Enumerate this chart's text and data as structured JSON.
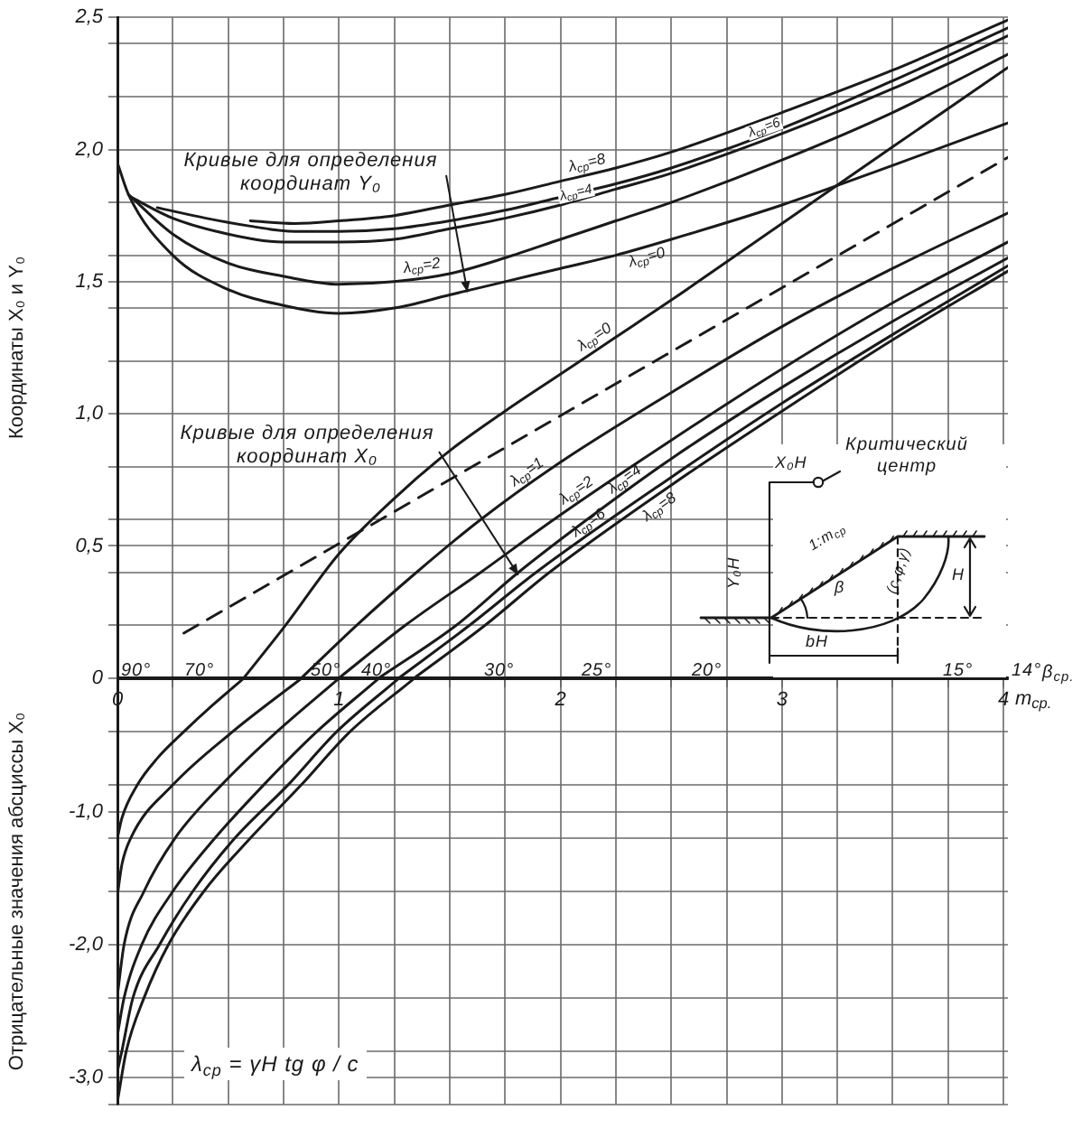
{
  "chart_data": [
    {
      "type": "line",
      "ylabel": "Координаты X₀ и Y₀",
      "tick_labels": "y",
      "grid": true,
      "marker": "none",
      "xlim": [
        0,
        4.02
      ],
      "xticks": [
        0,
        {
          "value": 0.25,
          "label": null
        },
        {
          "value": 0.5,
          "label": null
        },
        {
          "value": 0.75,
          "label": null
        },
        1,
        {
          "value": 1.25,
          "label": null
        },
        {
          "value": 1.5,
          "label": null
        },
        {
          "value": 1.75,
          "label": null
        },
        2,
        {
          "value": 2.25,
          "label": null
        },
        {
          "value": 2.5,
          "label": null
        },
        {
          "value": 2.75,
          "label": null
        },
        3,
        {
          "value": 3.25,
          "label": null
        },
        {
          "value": 3.5,
          "label": null
        },
        {
          "value": 3.75,
          "label": null
        },
        4
      ],
      "ylim": [
        0,
        2.5
      ],
      "yticks": [
        {
          "value": 0.2,
          "label": null
        },
        {
          "value": 0.4,
          "label": null
        },
        {
          "value": 0.5,
          "label": "0,5"
        },
        {
          "value": 0.6,
          "label": null
        },
        {
          "value": 0.8,
          "label": null
        },
        {
          "value": 1.0,
          "label": "1,0"
        },
        {
          "value": 1.2,
          "label": null
        },
        {
          "value": 1.4,
          "label": null
        },
        {
          "value": 1.5,
          "label": "1,5"
        },
        {
          "value": 1.6,
          "label": null
        },
        {
          "value": 1.8,
          "label": null
        },
        {
          "value": 2.0,
          "label": "2,0"
        },
        {
          "value": 2.2,
          "label": null
        },
        {
          "value": 2.4,
          "label": null
        },
        {
          "value": 2.5,
          "label": "2,5"
        }
      ],
      "series": [
        {
          "name": "λ$_{ср}$=8",
          "color": "#1a1a1a",
          "x": [
            0.6,
            0.8,
            1.0,
            1.25,
            1.5,
            1.75,
            2.0,
            2.25,
            2.5,
            3.0,
            3.5,
            4.02
          ],
          "values": [
            1.73,
            1.72,
            1.73,
            1.75,
            1.79,
            1.83,
            1.88,
            1.93,
            1.99,
            2.14,
            2.3,
            2.49
          ]
        },
        {
          "name": "λ$_{ср}$=6",
          "color": "#1a1a1a",
          "x": [
            0.18,
            0.4,
            0.6,
            0.8,
            1.0,
            1.25,
            1.5,
            1.75,
            2.0,
            2.25,
            2.5,
            3.0,
            3.5,
            4.02
          ],
          "values": [
            1.78,
            1.74,
            1.71,
            1.69,
            1.69,
            1.7,
            1.73,
            1.77,
            1.82,
            1.87,
            1.93,
            2.08,
            2.26,
            2.46
          ]
        },
        {
          "name": "λ$_{ср}$=4",
          "color": "#1a1a1a",
          "x": [
            0.06,
            0.25,
            0.5,
            0.75,
            1.0,
            1.25,
            1.5,
            1.75,
            2.0,
            2.25,
            2.5,
            3.0,
            3.5,
            4.02
          ],
          "values": [
            1.82,
            1.74,
            1.68,
            1.65,
            1.65,
            1.66,
            1.7,
            1.74,
            1.79,
            1.85,
            1.91,
            2.06,
            2.23,
            2.43
          ]
        },
        {
          "name": "λ$_{ср}$=2",
          "color": "#1a1a1a",
          "x": [
            0.05,
            0.25,
            0.5,
            0.75,
            1.0,
            1.25,
            1.5,
            1.75,
            2.0,
            2.25,
            2.5,
            3.0,
            3.5,
            4.02
          ],
          "values": [
            1.83,
            1.68,
            1.57,
            1.52,
            1.49,
            1.5,
            1.53,
            1.59,
            1.66,
            1.73,
            1.8,
            1.96,
            2.14,
            2.36
          ]
        },
        {
          "name": "λ$_{ср}$=0",
          "color": "#1a1a1a",
          "x": [
            0,
            0.05,
            0.25,
            0.5,
            0.75,
            1.0,
            1.25,
            1.5,
            1.75,
            2.0,
            2.25,
            2.5,
            3.0,
            3.5,
            4.02
          ],
          "values": [
            1.95,
            1.83,
            1.6,
            1.47,
            1.41,
            1.38,
            1.4,
            1.45,
            1.5,
            1.55,
            1.6,
            1.66,
            1.79,
            1.94,
            2.1
          ]
        },
        {
          "name": "λ$_{ср}$=0",
          "color": "#1a1a1a",
          "x": [
            0.57,
            0.75,
            1.0,
            1.25,
            1.5,
            1.75,
            2.0,
            2.25,
            2.5,
            3.0,
            3.5,
            4.02
          ],
          "values": [
            0,
            0.19,
            0.47,
            0.68,
            0.86,
            1.01,
            1.15,
            1.29,
            1.43,
            1.72,
            2.01,
            2.31
          ]
        },
        {
          "name": "λ$_{ср}$=1",
          "color": "#1a1a1a",
          "x": [
            0.83,
            1.08,
            1.35,
            1.64,
            1.97,
            2.5,
            3.0,
            3.5,
            4.02
          ],
          "values": [
            0,
            0.2,
            0.4,
            0.6,
            0.8,
            1.08,
            1.33,
            1.55,
            1.76
          ]
        },
        {
          "name": "λ$_{ср}$=2",
          "color": "#1a1a1a",
          "x": [
            1.0,
            1.3,
            1.64,
            1.97,
            2.5,
            3.0,
            3.5,
            4.02
          ],
          "values": [
            0,
            0.2,
            0.4,
            0.6,
            0.9,
            1.17,
            1.42,
            1.65
          ]
        },
        {
          "name": "λ$_{ср}$=4",
          "color": "#1a1a1a",
          "x": [
            1.18,
            1.53,
            1.81,
            2.12,
            2.5,
            3.0,
            3.5,
            4.02
          ],
          "values": [
            0,
            0.2,
            0.4,
            0.6,
            0.83,
            1.1,
            1.35,
            1.59
          ]
        },
        {
          "name": "λ$_{ср}$=6",
          "color": "#1a1a1a",
          "x": [
            1.27,
            1.59,
            1.89,
            2.5,
            3.0,
            3.5,
            4.02
          ],
          "values": [
            0,
            0.2,
            0.4,
            0.76,
            1.04,
            1.3,
            1.56
          ]
        },
        {
          "name": "λ$_{ср}$=8",
          "color": "#1a1a1a",
          "x": [
            1.34,
            1.66,
            1.95,
            2.5,
            3.0,
            3.5,
            4.02
          ],
          "values": [
            0,
            0.2,
            0.4,
            0.73,
            1.01,
            1.28,
            1.54
          ]
        },
        {
          "color": "#1a1a1a",
          "line_style": "dashed",
          "x": [
            0.3,
            4.02
          ],
          "values": [
            0.17,
            1.97
          ]
        }
      ],
      "annotations": [
        {
          "text": "Кривые для определения координат Y₀",
          "x": 1.58,
          "y": 1.46
        },
        {
          "text": "Кривые для определения координат X₀",
          "x": 1.81,
          "y": 0.39
        },
        "Критический центр",
        "X₀H",
        "Y₀H",
        "1:m$_{ср}$",
        "β",
        "(c,φ,γ)",
        "H",
        "bH",
        "β$_{ср.}$",
        "90°",
        "70°",
        "50°",
        "40°",
        "30°",
        "25°",
        "20°",
        "15°",
        "14°"
      ]
    },
    {
      "type": "line",
      "xlabel": "m$_{ср.}$",
      "ylabel": "Отрицательные значения абсциссы X₀",
      "grid": true,
      "marker": "none",
      "xlim": [
        0,
        4.02
      ],
      "xticks": [
        0,
        {
          "value": 0.25,
          "label": null
        },
        {
          "value": 0.5,
          "label": null
        },
        {
          "value": 0.75,
          "label": null
        },
        1,
        {
          "value": 1.25,
          "label": null
        },
        {
          "value": 1.5,
          "label": null
        },
        {
          "value": 1.75,
          "label": null
        },
        2,
        {
          "value": 2.25,
          "label": null
        },
        {
          "value": 2.5,
          "label": null
        },
        {
          "value": 2.75,
          "label": null
        },
        3,
        {
          "value": 3.25,
          "label": null
        },
        {
          "value": 3.5,
          "label": null
        },
        {
          "value": 3.75,
          "label": null
        },
        4
      ],
      "ylim": [
        -3.2,
        0
      ],
      "yticks": [
        0,
        {
          "value": -0.4,
          "label": null
        },
        {
          "value": -0.8,
          "label": null
        },
        {
          "value": -1.0,
          "label": "-1,0"
        },
        {
          "value": -1.2,
          "label": null
        },
        {
          "value": -1.6,
          "label": null
        },
        {
          "value": -2.0,
          "label": "-2,0"
        },
        {
          "value": -2.4,
          "label": null
        },
        {
          "value": -2.8,
          "label": null
        },
        {
          "value": -3.0,
          "label": "-3,0"
        },
        {
          "value": -3.2,
          "label": null
        }
      ],
      "series": [
        {
          "color": "#1a1a1a",
          "x": [
            0,
            0.02,
            0.09,
            0.18,
            0.3,
            0.43,
            0.57
          ],
          "values": [
            -1.2,
            -1.05,
            -0.8,
            -0.6,
            -0.4,
            -0.2,
            0
          ]
        },
        {
          "color": "#1a1a1a",
          "x": [
            0,
            0.02,
            0.06,
            0.25,
            0.52,
            0.83
          ],
          "values": [
            -1.63,
            -1.4,
            -1.2,
            -0.8,
            -0.4,
            0
          ]
        },
        {
          "color": "#1a1a1a",
          "x": [
            0,
            0.03,
            0.12,
            0.26,
            0.47,
            0.72,
            1.0
          ],
          "values": [
            -2.38,
            -2.0,
            -1.6,
            -1.2,
            -0.8,
            -0.4,
            0
          ]
        },
        {
          "color": "#1a1a1a",
          "x": [
            0,
            0.03,
            0.11,
            0.25,
            0.44,
            0.66,
            0.9,
            1.18
          ],
          "values": [
            -2.68,
            -2.4,
            -2.0,
            -1.6,
            -1.2,
            -0.8,
            -0.4,
            0
          ]
        },
        {
          "color": "#1a1a1a",
          "x": [
            0,
            0.02,
            0.07,
            0.19,
            0.34,
            0.53,
            0.77,
            0.99,
            1.27
          ],
          "values": [
            -2.95,
            -2.8,
            -2.4,
            -2.0,
            -1.6,
            -1.2,
            -0.8,
            -0.4,
            0
          ]
        },
        {
          "color": "#1a1a1a",
          "x": [
            0,
            0.04,
            0.12,
            0.23,
            0.39,
            0.6,
            0.83,
            1.05,
            1.34
          ],
          "values": [
            -3.18,
            -2.8,
            -2.4,
            -2.0,
            -1.6,
            -1.2,
            -0.8,
            -0.4,
            0
          ]
        }
      ],
      "annotations": [
        "λ$_{ср}$ = γH tg φ / c"
      ]
    }
  ]
}
